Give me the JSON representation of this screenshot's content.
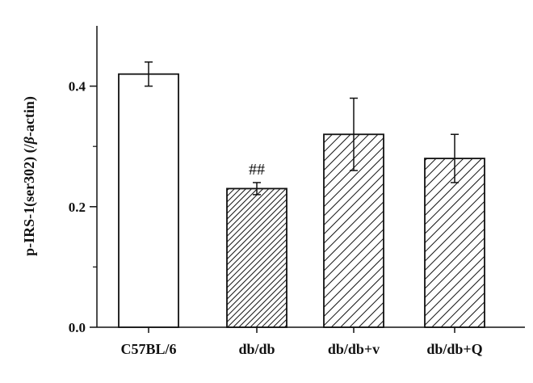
{
  "chart_data": {
    "type": "bar",
    "ylabel_main": "p-IRS-1(ser302) (/",
    "ylabel_greek": "β",
    "ylabel_tail": "-actin)",
    "categories": [
      "C57BL/6",
      "db/db",
      "db/db+v",
      "db/db+Q"
    ],
    "values": [
      0.42,
      0.23,
      0.32,
      0.28
    ],
    "errors": [
      0.02,
      0.01,
      0.06,
      0.04
    ],
    "patterns": [
      "none",
      "dense-hatch",
      "hatch",
      "hatch"
    ],
    "annotations": [
      "",
      "##",
      "",
      ""
    ],
    "ylim": [
      0,
      0.5
    ],
    "yticks": [
      0.0,
      0.2,
      0.4
    ],
    "ytick_labels": [
      "0.0",
      "0.2",
      "0.4"
    ],
    "grid": false,
    "legend": "none"
  }
}
